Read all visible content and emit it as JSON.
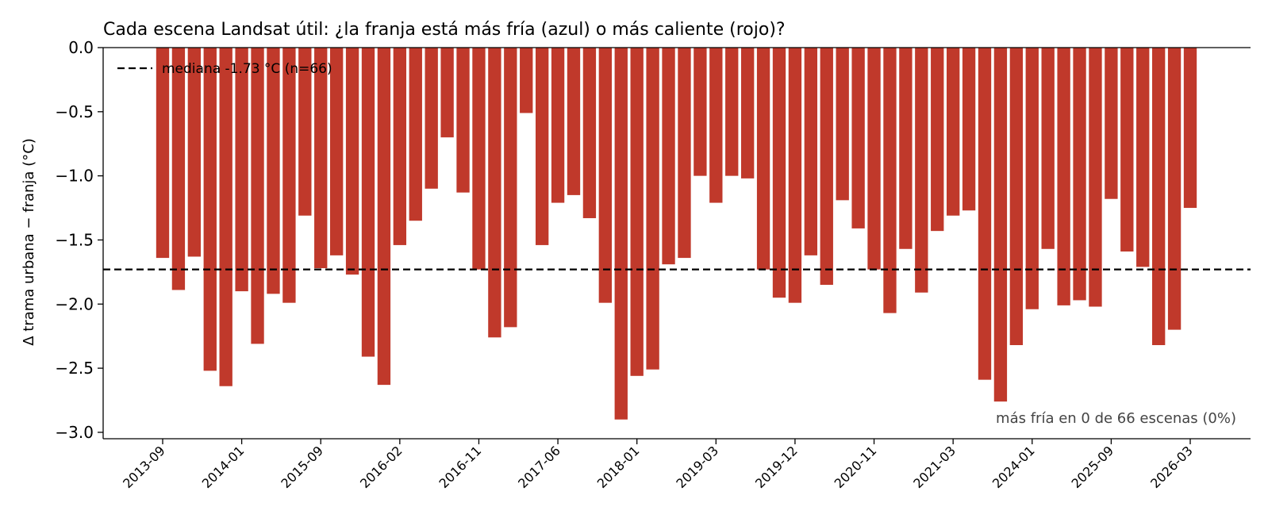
{
  "chart_data": {
    "type": "bar",
    "title": "Cada escena Landsat útil: ¿la franja está más fría (azul) o más caliente (rojo)?",
    "ylabel": "Δ trama urbana − franja (°C)",
    "xlabel": "",
    "ylim": [
      -3.05,
      0.0
    ],
    "yticks": [
      0.0,
      -0.5,
      -1.0,
      -1.5,
      -2.0,
      -2.5,
      -3.0
    ],
    "ytick_labels": [
      "0.0",
      "−0.5",
      "−1.0",
      "−1.5",
      "−2.0",
      "−2.5",
      "−3.0"
    ],
    "xtick_labels": [
      {
        "label": "2013-09",
        "index": 0
      },
      {
        "label": "2014-01",
        "index": 5
      },
      {
        "label": "2015-09",
        "index": 10
      },
      {
        "label": "2016-02",
        "index": 15
      },
      {
        "label": "2016-11",
        "index": 20
      },
      {
        "label": "2017-06",
        "index": 25
      },
      {
        "label": "2018-01",
        "index": 30
      },
      {
        "label": "2019-03",
        "index": 35
      },
      {
        "label": "2019-12",
        "index": 40
      },
      {
        "label": "2020-11",
        "index": 45
      },
      {
        "label": "2021-03",
        "index": 50
      },
      {
        "label": "2024-01",
        "index": 55
      },
      {
        "label": "2025-09",
        "index": 60
      },
      {
        "label": "2026-03",
        "index": 65
      }
    ],
    "values": [
      -1.64,
      -1.89,
      -1.63,
      -2.52,
      -2.64,
      -1.9,
      -2.31,
      -1.92,
      -1.99,
      -1.31,
      -1.72,
      -1.62,
      -1.77,
      -2.41,
      -2.63,
      -1.54,
      -1.35,
      -1.1,
      -0.7,
      -1.13,
      -1.73,
      -2.26,
      -2.18,
      -0.51,
      -1.54,
      -1.21,
      -1.15,
      -1.33,
      -1.99,
      -2.9,
      -2.56,
      -2.51,
      -1.69,
      -1.64,
      -1.0,
      -1.21,
      -1.0,
      -1.02,
      -1.73,
      -1.95,
      -1.99,
      -1.62,
      -1.85,
      -1.19,
      -1.41,
      -1.73,
      -2.07,
      -1.57,
      -1.91,
      -1.43,
      -1.31,
      -1.27,
      -2.59,
      -2.76,
      -2.32,
      -2.04,
      -1.57,
      -2.01,
      -1.97,
      -2.02,
      -1.18,
      -1.59,
      -1.71,
      -2.32,
      -2.2,
      -1.25
    ],
    "bar_color": "#c0392b",
    "median": -1.73,
    "legend": {
      "label": "mediana -1.73 °C  (n=66)",
      "placement": "upper-left"
    },
    "annotation": "más fría en 0 de 66 escenas (0%)",
    "grid": false
  }
}
